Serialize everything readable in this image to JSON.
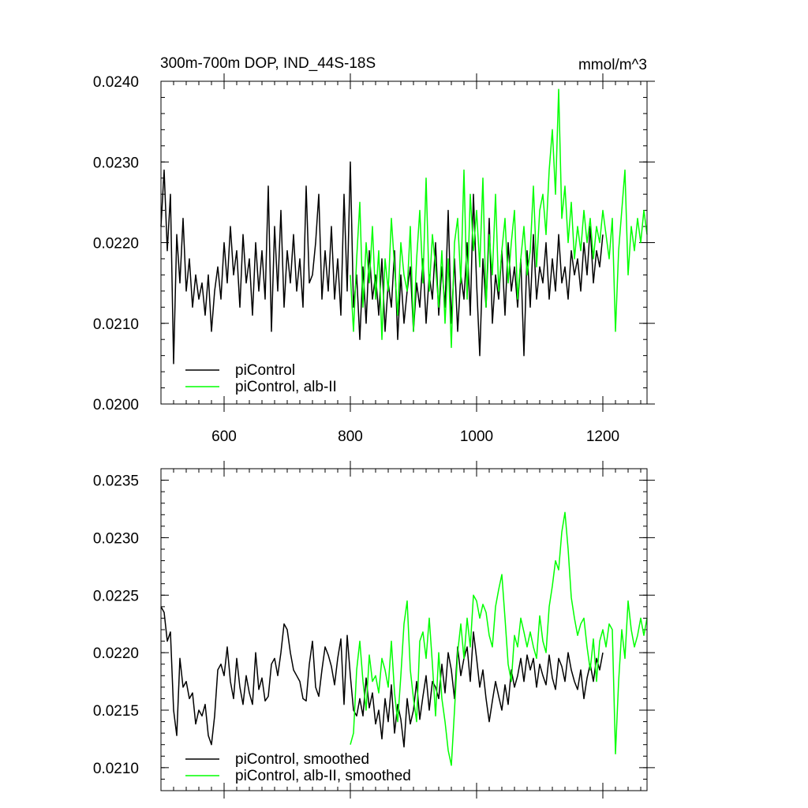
{
  "figure": {
    "title_left": "300m-700m DOP, IND_44S-18S",
    "title_right": "mmol/m^3"
  },
  "chart_data": [
    {
      "type": "line",
      "title": "300m-700m DOP, IND_44S-18S",
      "units": "mmol/m^3",
      "xlim": [
        500,
        1270
      ],
      "ylim": [
        0.02,
        0.024
      ],
      "xticks": [
        600,
        800,
        1000,
        1200
      ],
      "xtick_labels": [
        "600",
        "800",
        "1000",
        "1200"
      ],
      "yticks": [
        0.02,
        0.021,
        0.022,
        0.023,
        0.024
      ],
      "ytick_labels": [
        "0.0200",
        "0.0210",
        "0.0220",
        "0.0230",
        "0.0240"
      ],
      "legend_position": "bottom-left",
      "series": [
        {
          "name": "piControl",
          "color": "#000000",
          "x": [
            500,
            505,
            510,
            515,
            520,
            525,
            530,
            535,
            540,
            545,
            550,
            555,
            560,
            565,
            570,
            575,
            580,
            585,
            590,
            595,
            600,
            605,
            610,
            615,
            620,
            625,
            630,
            635,
            640,
            645,
            650,
            655,
            660,
            665,
            670,
            675,
            680,
            685,
            690,
            695,
            700,
            705,
            710,
            715,
            720,
            725,
            730,
            735,
            740,
            745,
            750,
            755,
            760,
            765,
            770,
            775,
            780,
            785,
            790,
            795,
            800,
            805,
            810,
            815,
            820,
            825,
            830,
            835,
            840,
            845,
            850,
            855,
            860,
            865,
            870,
            875,
            880,
            885,
            890,
            895,
            900,
            905,
            910,
            915,
            920,
            925,
            930,
            935,
            940,
            945,
            950,
            955,
            960,
            965,
            970,
            975,
            980,
            985,
            990,
            995,
            1000,
            1005,
            1010,
            1015,
            1020,
            1025,
            1030,
            1035,
            1040,
            1045,
            1050,
            1055,
            1060,
            1065,
            1070,
            1075,
            1080,
            1085,
            1090,
            1095,
            1100,
            1105,
            1110,
            1115,
            1120,
            1125,
            1130,
            1135,
            1140,
            1145,
            1150,
            1155,
            1160,
            1165,
            1170,
            1175,
            1180,
            1185,
            1190,
            1195,
            1200
          ],
          "y": [
            0.0222,
            0.0229,
            0.0219,
            0.0226,
            0.0205,
            0.0221,
            0.0215,
            0.0223,
            0.0214,
            0.0218,
            0.0212,
            0.0216,
            0.0213,
            0.0215,
            0.0211,
            0.0216,
            0.0209,
            0.0214,
            0.0217,
            0.0213,
            0.022,
            0.0215,
            0.0222,
            0.0216,
            0.0219,
            0.0212,
            0.0221,
            0.0215,
            0.0218,
            0.0211,
            0.022,
            0.0214,
            0.0219,
            0.0213,
            0.0227,
            0.0209,
            0.0222,
            0.0214,
            0.0224,
            0.0212,
            0.0219,
            0.0215,
            0.0221,
            0.0214,
            0.0218,
            0.0212,
            0.0227,
            0.0215,
            0.0216,
            0.022,
            0.0226,
            0.0213,
            0.0219,
            0.0214,
            0.0222,
            0.0213,
            0.0218,
            0.0211,
            0.0226,
            0.0214,
            0.023,
            0.0212,
            0.0216,
            0.0208,
            0.0217,
            0.021,
            0.0219,
            0.0213,
            0.0216,
            0.0211,
            0.0218,
            0.0209,
            0.0215,
            0.0212,
            0.0219,
            0.0208,
            0.0216,
            0.021,
            0.0214,
            0.0217,
            0.0209,
            0.0215,
            0.0212,
            0.0218,
            0.021,
            0.0216,
            0.0213,
            0.022,
            0.0211,
            0.0217,
            0.0212,
            0.0224,
            0.021,
            0.0218,
            0.0209,
            0.0216,
            0.0213,
            0.022,
            0.0211,
            0.0226,
            0.0215,
            0.0206,
            0.0218,
            0.0212,
            0.0223,
            0.021,
            0.0216,
            0.0213,
            0.0219,
            0.0211,
            0.022,
            0.0214,
            0.0217,
            0.0212,
            0.0218,
            0.0206,
            0.0219,
            0.0212,
            0.0221,
            0.0213,
            0.0217,
            0.0215,
            0.022,
            0.0213,
            0.0218,
            0.0214,
            0.0221,
            0.0215,
            0.0217,
            0.0213,
            0.0219,
            0.0216,
            0.0218,
            0.0214,
            0.022,
            0.0216,
            0.0222,
            0.0215,
            0.0219,
            0.0217,
            0.0221
          ]
        },
        {
          "name": "piControl, alb-II",
          "color": "#00ff00",
          "x": [
            800,
            805,
            810,
            815,
            820,
            825,
            830,
            835,
            840,
            845,
            850,
            855,
            860,
            865,
            870,
            875,
            880,
            885,
            890,
            895,
            900,
            905,
            910,
            915,
            920,
            925,
            930,
            935,
            940,
            945,
            950,
            955,
            960,
            965,
            970,
            975,
            980,
            985,
            990,
            995,
            1000,
            1005,
            1010,
            1015,
            1020,
            1025,
            1030,
            1035,
            1040,
            1045,
            1050,
            1055,
            1060,
            1065,
            1070,
            1075,
            1080,
            1085,
            1090,
            1095,
            1100,
            1105,
            1110,
            1115,
            1120,
            1125,
            1130,
            1135,
            1140,
            1145,
            1150,
            1155,
            1160,
            1165,
            1170,
            1175,
            1180,
            1185,
            1190,
            1195,
            1200,
            1205,
            1210,
            1215,
            1220,
            1225,
            1230,
            1235,
            1240,
            1245,
            1250,
            1255,
            1260,
            1265,
            1270
          ],
          "y": [
            0.0216,
            0.0209,
            0.0218,
            0.0225,
            0.0212,
            0.022,
            0.0215,
            0.0222,
            0.0213,
            0.0219,
            0.0208,
            0.0218,
            0.0214,
            0.0223,
            0.0217,
            0.0211,
            0.022,
            0.0216,
            0.0214,
            0.0222,
            0.0209,
            0.0218,
            0.0224,
            0.0215,
            0.0228,
            0.0214,
            0.0221,
            0.0217,
            0.0212,
            0.0219,
            0.021,
            0.0218,
            0.0207,
            0.022,
            0.0223,
            0.0215,
            0.0229,
            0.0213,
            0.0226,
            0.0219,
            0.0224,
            0.0217,
            0.0228,
            0.0212,
            0.0221,
            0.0216,
            0.0226,
            0.0214,
            0.0219,
            0.0223,
            0.0215,
            0.022,
            0.0224,
            0.0213,
            0.0218,
            0.0222,
            0.0216,
            0.0219,
            0.0227,
            0.0217,
            0.0224,
            0.0226,
            0.0221,
            0.0229,
            0.0234,
            0.0226,
            0.0239,
            0.0223,
            0.0227,
            0.022,
            0.0225,
            0.0218,
            0.0222,
            0.0219,
            0.0224,
            0.022,
            0.0223,
            0.0218,
            0.0222,
            0.022,
            0.0224,
            0.0221,
            0.0218,
            0.0223,
            0.0209,
            0.0219,
            0.0224,
            0.0229,
            0.0216,
            0.0222,
            0.0219,
            0.0223,
            0.022,
            0.0224,
            0.0221
          ]
        }
      ]
    },
    {
      "type": "line",
      "xlim": [
        500,
        1270
      ],
      "ylim": [
        0.0208,
        0.0236
      ],
      "xticks": [
        600,
        800,
        1000,
        1200
      ],
      "yticks": [
        0.021,
        0.0215,
        0.022,
        0.0225,
        0.023,
        0.0235
      ],
      "ytick_labels": [
        "0.0210",
        "0.0215",
        "0.0220",
        "0.0225",
        "0.0230",
        "0.0235"
      ],
      "legend_position": "bottom-left",
      "series": [
        {
          "name": "piControl, smoothed",
          "color": "#000000",
          "x": [
            500,
            505,
            510,
            515,
            520,
            525,
            530,
            535,
            540,
            545,
            550,
            555,
            560,
            565,
            570,
            575,
            580,
            585,
            590,
            595,
            600,
            605,
            610,
            615,
            620,
            625,
            630,
            635,
            640,
            645,
            650,
            655,
            660,
            665,
            670,
            675,
            680,
            685,
            690,
            695,
            700,
            705,
            710,
            715,
            720,
            725,
            730,
            735,
            740,
            745,
            750,
            755,
            760,
            765,
            770,
            775,
            780,
            785,
            790,
            795,
            800,
            805,
            810,
            815,
            820,
            825,
            830,
            835,
            840,
            845,
            850,
            855,
            860,
            865,
            870,
            875,
            880,
            885,
            890,
            895,
            900,
            905,
            910,
            915,
            920,
            925,
            930,
            935,
            940,
            945,
            950,
            955,
            960,
            965,
            970,
            975,
            980,
            985,
            990,
            995,
            1000,
            1005,
            1010,
            1015,
            1020,
            1025,
            1030,
            1035,
            1040,
            1045,
            1050,
            1055,
            1060,
            1065,
            1070,
            1075,
            1080,
            1085,
            1090,
            1095,
            1100,
            1105,
            1110,
            1115,
            1120,
            1125,
            1130,
            1135,
            1140,
            1145,
            1150,
            1155,
            1160,
            1165,
            1170,
            1175,
            1180,
            1185,
            1190,
            1195,
            1200
          ],
          "y": [
            0.0224,
            0.02235,
            0.0221,
            0.02218,
            0.0215,
            0.02128,
            0.02195,
            0.0217,
            0.02175,
            0.0216,
            0.02165,
            0.02138,
            0.0215,
            0.02145,
            0.02155,
            0.02128,
            0.0212,
            0.02145,
            0.02185,
            0.0219,
            0.0218,
            0.02205,
            0.02175,
            0.0216,
            0.02195,
            0.0217,
            0.02155,
            0.0218,
            0.02165,
            0.02155,
            0.022,
            0.02168,
            0.02178,
            0.02158,
            0.02162,
            0.0219,
            0.02195,
            0.0218,
            0.022,
            0.02225,
            0.0222,
            0.022,
            0.02185,
            0.0218,
            0.02175,
            0.0216,
            0.02158,
            0.0219,
            0.0221,
            0.0217,
            0.02162,
            0.02185,
            0.02205,
            0.02198,
            0.02188,
            0.02172,
            0.02195,
            0.02212,
            0.02155,
            0.02215,
            0.0218,
            0.0215,
            0.02145,
            0.0216,
            0.02145,
            0.02178,
            0.02152,
            0.02165,
            0.02138,
            0.0215,
            0.02125,
            0.0216,
            0.0214,
            0.02172,
            0.0213,
            0.02155,
            0.02142,
            0.02118,
            0.0216,
            0.02138,
            0.0215,
            0.02175,
            0.02142,
            0.02162,
            0.0218,
            0.0215,
            0.02175,
            0.0217,
            0.0216,
            0.0219,
            0.02165,
            0.022,
            0.02185,
            0.0216,
            0.02205,
            0.0218,
            0.02195,
            0.02205,
            0.02175,
            0.02218,
            0.02195,
            0.0217,
            0.02185,
            0.0216,
            0.0214,
            0.02158,
            0.02175,
            0.02162,
            0.0215,
            0.02172,
            0.02155,
            0.02185,
            0.0217,
            0.0218,
            0.02195,
            0.02175,
            0.02198,
            0.02185,
            0.02195,
            0.0217,
            0.0219,
            0.0218,
            0.02172,
            0.02198,
            0.02178,
            0.02168,
            0.02195,
            0.02188,
            0.02175,
            0.022,
            0.02185,
            0.02175,
            0.02168,
            0.02185,
            0.0216,
            0.02178,
            0.0219,
            0.02175,
            0.02195,
            0.02185,
            0.022
          ]
        },
        {
          "name": "piControl, alb-II, smoothed",
          "color": "#00ff00",
          "x": [
            800,
            805,
            810,
            815,
            820,
            825,
            830,
            835,
            840,
            845,
            850,
            855,
            860,
            865,
            870,
            875,
            880,
            885,
            890,
            895,
            900,
            905,
            910,
            915,
            920,
            925,
            930,
            935,
            940,
            945,
            950,
            955,
            960,
            965,
            970,
            975,
            980,
            985,
            990,
            995,
            1000,
            1005,
            1010,
            1015,
            1020,
            1025,
            1030,
            1035,
            1040,
            1045,
            1050,
            1055,
            1060,
            1065,
            1070,
            1075,
            1080,
            1085,
            1090,
            1095,
            1100,
            1105,
            1110,
            1115,
            1120,
            1125,
            1130,
            1135,
            1140,
            1145,
            1150,
            1155,
            1160,
            1165,
            1170,
            1175,
            1180,
            1185,
            1190,
            1195,
            1200,
            1205,
            1210,
            1215,
            1220,
            1225,
            1230,
            1235,
            1240,
            1245,
            1250,
            1255,
            1260,
            1265,
            1270
          ],
          "y": [
            0.0212,
            0.0213,
            0.02185,
            0.0221,
            0.02175,
            0.0215,
            0.02198,
            0.02175,
            0.0218,
            0.02165,
            0.02195,
            0.02185,
            0.0217,
            0.0221,
            0.02165,
            0.0214,
            0.0218,
            0.02225,
            0.02245,
            0.02185,
            0.0216,
            0.0214,
            0.0221,
            0.02218,
            0.02195,
            0.0223,
            0.0219,
            0.02145,
            0.022,
            0.0216,
            0.0214,
            0.02115,
            0.02102,
            0.0215,
            0.022,
            0.02225,
            0.02195,
            0.0223,
            0.02205,
            0.0225,
            0.02245,
            0.0223,
            0.02242,
            0.02235,
            0.02215,
            0.02205,
            0.0224,
            0.02255,
            0.02268,
            0.0223,
            0.0219,
            0.02175,
            0.02215,
            0.02205,
            0.0223,
            0.02218,
            0.02205,
            0.02218,
            0.02205,
            0.02195,
            0.02232,
            0.0221,
            0.022,
            0.0224,
            0.02258,
            0.0228,
            0.02272,
            0.02305,
            0.02322,
            0.0229,
            0.02248,
            0.0223,
            0.02215,
            0.02225,
            0.0223,
            0.02205,
            0.02185,
            0.02212,
            0.02175,
            0.0221,
            0.0222,
            0.02205,
            0.02225,
            0.0222,
            0.02112,
            0.02175,
            0.0222,
            0.02195,
            0.02245,
            0.0222,
            0.02205,
            0.02215,
            0.0223,
            0.02215,
            0.0223
          ]
        }
      ]
    }
  ]
}
